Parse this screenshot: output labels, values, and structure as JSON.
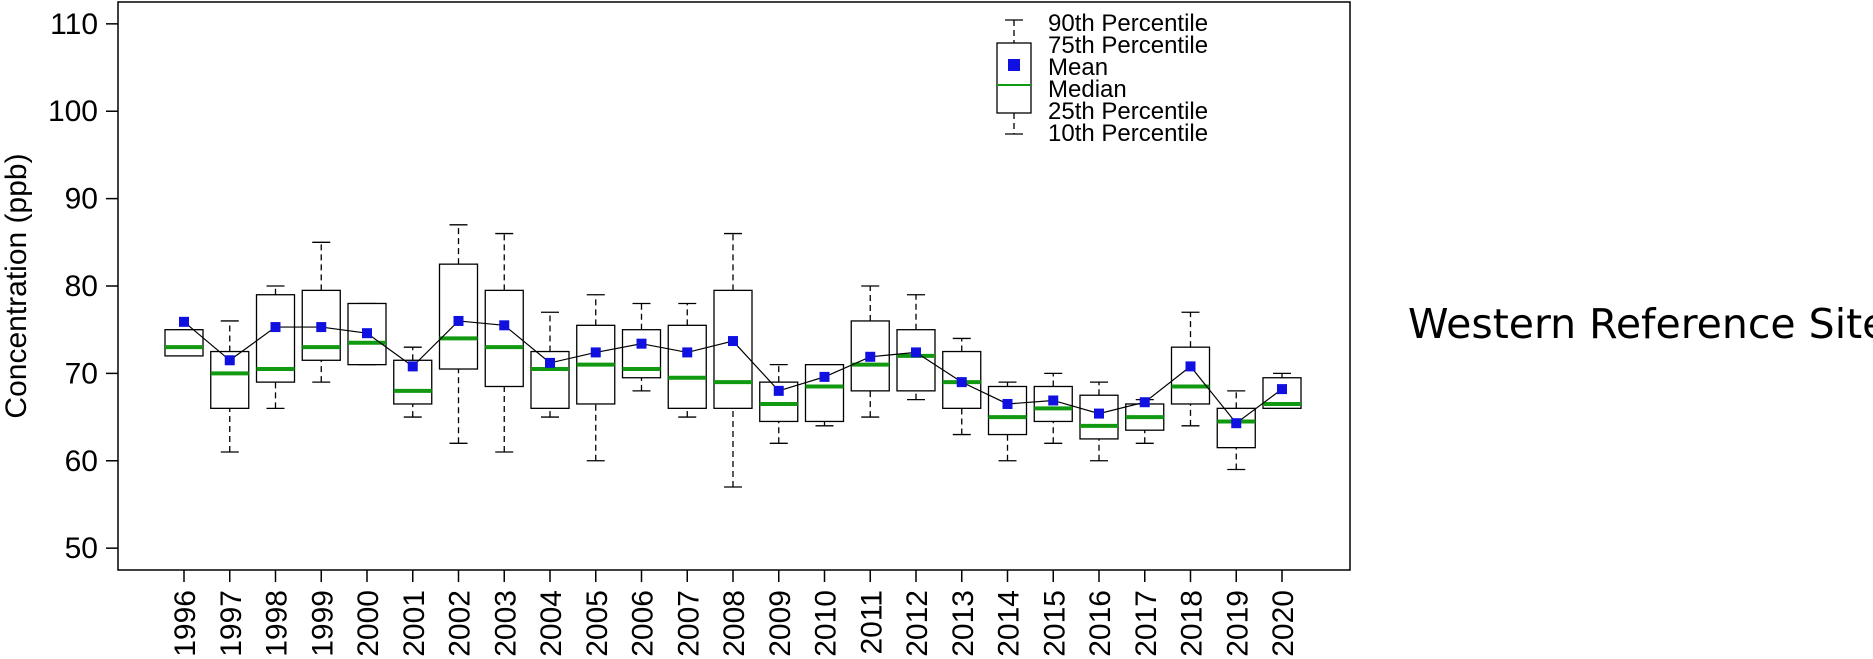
{
  "page_title": "Western Reference Sites",
  "chart_data": {
    "type": "box",
    "title": "Western Reference Sites",
    "ylabel": "Concentration (ppb)",
    "xlabel": "",
    "ylim": [
      47.5,
      112.5
    ],
    "yticks": [
      50,
      60,
      70,
      80,
      90,
      100,
      110
    ],
    "grid": false,
    "legend_position": "top-center",
    "legend": [
      {
        "key": "p90",
        "label": "90th Percentile"
      },
      {
        "key": "q3",
        "label": "75th Percentile"
      },
      {
        "key": "mean",
        "label": "Mean"
      },
      {
        "key": "median",
        "label": "Median"
      },
      {
        "key": "q1",
        "label": "25th Percentile"
      },
      {
        "key": "p10",
        "label": "10th Percentile"
      }
    ],
    "colors": {
      "mean": "#1010e0",
      "median": "#119911",
      "box": "#000000",
      "line": "#000000"
    },
    "categories": [
      "1996",
      "1997",
      "1998",
      "1999",
      "2000",
      "2001",
      "2002",
      "2003",
      "2004",
      "2005",
      "2006",
      "2007",
      "2008",
      "2009",
      "2010",
      "2011",
      "2012",
      "2013",
      "2014",
      "2015",
      "2016",
      "2017",
      "2018",
      "2019",
      "2020"
    ],
    "series": [
      {
        "name": "10th Percentile",
        "values": [
          73,
          61,
          66,
          69,
          71,
          65,
          62,
          61,
          65,
          60,
          68,
          65,
          57,
          62,
          64,
          65,
          67,
          63,
          60,
          62,
          60,
          62,
          64,
          59,
          66
        ]
      },
      {
        "name": "25th Percentile",
        "values": [
          72,
          66,
          69,
          71.5,
          71,
          66.5,
          70.5,
          68.5,
          66,
          66.5,
          69.5,
          66,
          66,
          64.5,
          64.5,
          68,
          68,
          66,
          63,
          64.5,
          62.5,
          63.5,
          66.5,
          61.5,
          66
        ]
      },
      {
        "name": "Median",
        "values": [
          73,
          70,
          70.5,
          73,
          73.5,
          68,
          74,
          73,
          70.5,
          71,
          70.5,
          69.5,
          69,
          66.5,
          68.5,
          71,
          72,
          69,
          65,
          66,
          64,
          65,
          68.5,
          64.5,
          66.5
        ]
      },
      {
        "name": "Mean",
        "values": [
          75.9,
          71.5,
          75.3,
          75.3,
          74.6,
          70.8,
          76,
          75.5,
          71.2,
          72.4,
          73.4,
          72.4,
          73.7,
          68,
          69.6,
          71.9,
          72.4,
          69,
          66.5,
          66.9,
          65.4,
          66.7,
          70.8,
          64.3,
          68.2
        ]
      },
      {
        "name": "75th Percentile",
        "values": [
          75,
          72.5,
          79,
          79.5,
          78,
          71.5,
          82.5,
          79.5,
          72.5,
          75.5,
          75,
          75.5,
          79.5,
          69,
          71,
          76,
          75,
          72.5,
          68.5,
          68.5,
          67.5,
          66.5,
          73,
          66,
          69.5
        ]
      },
      {
        "name": "90th Percentile",
        "values": [
          75,
          76,
          80,
          85,
          78,
          73,
          87,
          86,
          77,
          79,
          78,
          78,
          86,
          71,
          71,
          80,
          79,
          74,
          69,
          70,
          69,
          67,
          77,
          68,
          70
        ]
      }
    ]
  }
}
